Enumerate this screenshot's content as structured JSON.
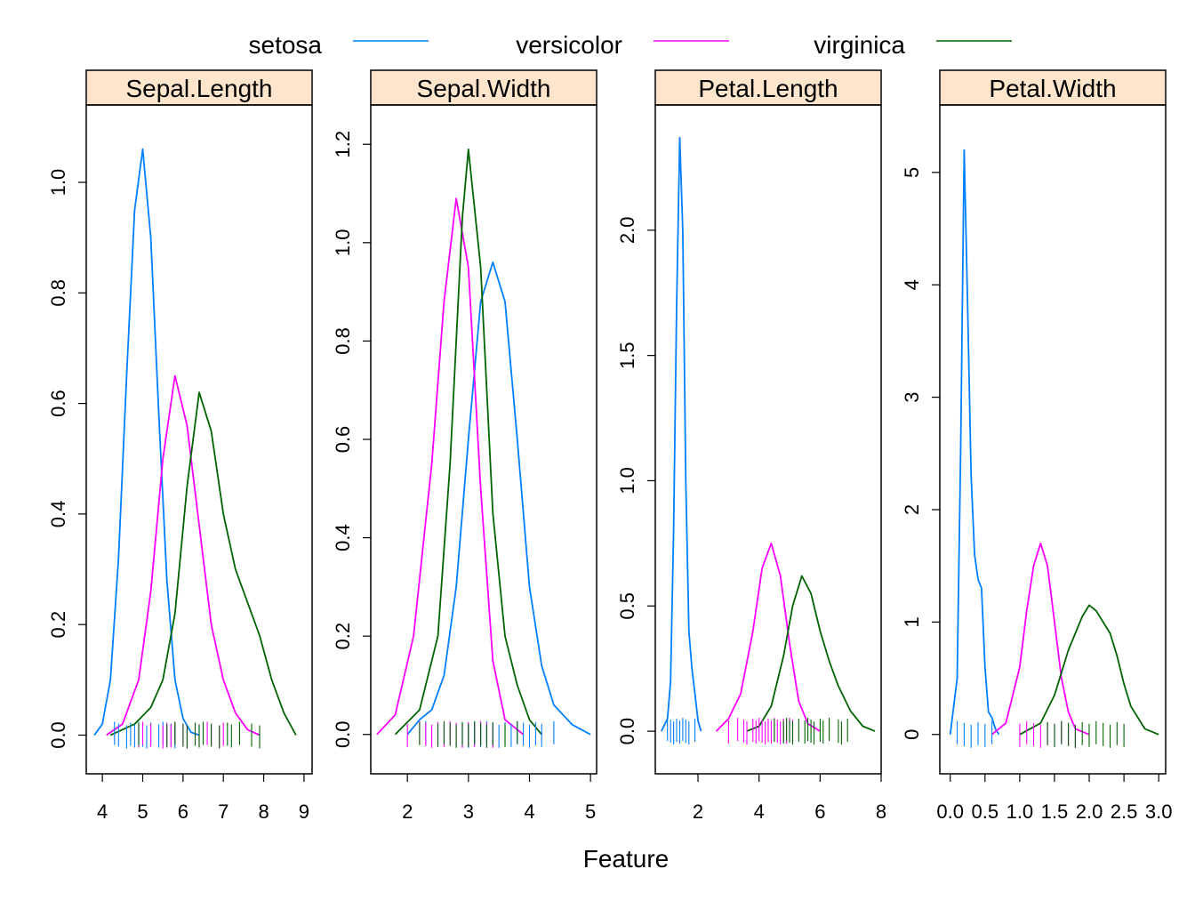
{
  "chart_data": {
    "type": "line",
    "xlabel": "Feature",
    "legend_position": "top",
    "colors": {
      "strip_fill": "#ffe5cc",
      "frame": "#000000"
    },
    "series_meta": [
      {
        "name": "setosa",
        "color": "#0080ff"
      },
      {
        "name": "versicolor",
        "color": "#ff00ff"
      },
      {
        "name": "virginica",
        "color": "#006400"
      }
    ],
    "panels": [
      {
        "strip": "Sepal.Length",
        "xlim": [
          3.6,
          9.2
        ],
        "ylim": [
          -0.07,
          1.14
        ],
        "xticks": [
          4,
          5,
          6,
          7,
          8,
          9
        ],
        "xtick_labels": [
          "4",
          "5",
          "6",
          "7",
          "8",
          "9"
        ],
        "yticks": [
          0.0,
          0.2,
          0.4,
          0.6,
          0.8,
          1.0
        ],
        "ytick_labels": [
          "0.0",
          "0.2",
          "0.4",
          "0.6",
          "0.8",
          "1.0"
        ],
        "series": [
          {
            "name": "setosa",
            "x": [
              3.8,
              4.0,
              4.2,
              4.4,
              4.6,
              4.8,
              5.0,
              5.2,
              5.4,
              5.6,
              5.8,
              6.0,
              6.2,
              6.4
            ],
            "y": [
              0.0,
              0.02,
              0.1,
              0.32,
              0.65,
              0.95,
              1.06,
              0.9,
              0.58,
              0.28,
              0.1,
              0.03,
              0.005,
              0.0
            ]
          },
          {
            "name": "versicolor",
            "x": [
              4.1,
              4.5,
              4.9,
              5.2,
              5.5,
              5.8,
              6.1,
              6.4,
              6.7,
              7.0,
              7.3,
              7.6,
              7.9
            ],
            "y": [
              0.0,
              0.02,
              0.1,
              0.26,
              0.5,
              0.65,
              0.56,
              0.38,
              0.2,
              0.1,
              0.04,
              0.01,
              0.0
            ]
          },
          {
            "name": "virginica",
            "x": [
              4.2,
              4.8,
              5.2,
              5.5,
              5.8,
              6.1,
              6.4,
              6.7,
              7.0,
              7.3,
              7.6,
              7.9,
              8.2,
              8.5,
              8.8
            ],
            "y": [
              0.0,
              0.02,
              0.05,
              0.1,
              0.22,
              0.45,
              0.62,
              0.55,
              0.4,
              0.3,
              0.24,
              0.18,
              0.1,
              0.04,
              0.0
            ]
          }
        ],
        "rugs": [
          {
            "name": "setosa",
            "x": [
              4.3,
              4.4,
              4.6,
              4.7,
              4.8,
              4.9,
              5.0,
              5.1,
              5.2,
              5.4,
              5.5,
              5.7,
              5.8
            ]
          },
          {
            "name": "versicolor",
            "x": [
              4.9,
              5.0,
              5.2,
              5.5,
              5.6,
              5.7,
              5.8,
              6.0,
              6.1,
              6.3,
              6.4,
              6.6,
              6.7,
              6.9,
              7.0
            ]
          },
          {
            "name": "virginica",
            "x": [
              4.9,
              5.6,
              5.8,
              6.0,
              6.1,
              6.3,
              6.4,
              6.5,
              6.7,
              6.9,
              7.1,
              7.2,
              7.4,
              7.7,
              7.9
            ]
          }
        ]
      },
      {
        "strip": "Sepal.Width",
        "xlim": [
          1.4,
          5.1
        ],
        "ylim": [
          -0.08,
          1.28
        ],
        "xticks": [
          2,
          3,
          4,
          5
        ],
        "xtick_labels": [
          "2",
          "3",
          "4",
          "5"
        ],
        "yticks": [
          0.0,
          0.2,
          0.4,
          0.6,
          0.8,
          1.0,
          1.2
        ],
        "ytick_labels": [
          "0.0",
          "0.2",
          "0.4",
          "0.6",
          "0.8",
          "1.0",
          "1.2"
        ],
        "series": [
          {
            "name": "setosa",
            "x": [
              2.0,
              2.2,
              2.4,
              2.6,
              2.8,
              3.0,
              3.2,
              3.4,
              3.6,
              3.8,
              4.0,
              4.2,
              4.4,
              4.7,
              5.0
            ],
            "y": [
              0.0,
              0.03,
              0.05,
              0.12,
              0.3,
              0.6,
              0.88,
              0.96,
              0.88,
              0.6,
              0.3,
              0.14,
              0.06,
              0.02,
              0.0
            ]
          },
          {
            "name": "versicolor",
            "x": [
              1.5,
              1.8,
              2.1,
              2.4,
              2.6,
              2.8,
              3.0,
              3.2,
              3.4,
              3.6,
              3.9
            ],
            "y": [
              0.0,
              0.04,
              0.2,
              0.55,
              0.88,
              1.09,
              0.95,
              0.5,
              0.15,
              0.03,
              0.0
            ]
          },
          {
            "name": "virginica",
            "x": [
              1.8,
              2.2,
              2.5,
              2.7,
              2.9,
              3.0,
              3.2,
              3.4,
              3.6,
              3.8,
              4.0,
              4.2
            ],
            "y": [
              0.0,
              0.05,
              0.2,
              0.55,
              1.05,
              1.19,
              0.95,
              0.45,
              0.2,
              0.1,
              0.03,
              0.0
            ]
          }
        ],
        "rugs": [
          {
            "name": "setosa",
            "x": [
              2.3,
              2.9,
              3.0,
              3.1,
              3.2,
              3.3,
              3.4,
              3.5,
              3.6,
              3.7,
              3.8,
              3.9,
              4.0,
              4.1,
              4.2,
              4.4
            ]
          },
          {
            "name": "versicolor",
            "x": [
              2.0,
              2.2,
              2.3,
              2.4,
              2.5,
              2.6,
              2.7,
              2.8,
              2.9,
              3.0,
              3.1,
              3.2,
              3.3,
              3.4
            ]
          },
          {
            "name": "virginica",
            "x": [
              2.2,
              2.5,
              2.6,
              2.7,
              2.8,
              2.9,
              3.0,
              3.1,
              3.2,
              3.3,
              3.4,
              3.6,
              3.8
            ]
          }
        ]
      },
      {
        "strip": "Petal.Length",
        "xlim": [
          0.6,
          8.0
        ],
        "ylim": [
          -0.17,
          2.5
        ],
        "xticks": [
          2,
          4,
          6,
          8
        ],
        "xtick_labels": [
          "2",
          "4",
          "6",
          "8"
        ],
        "yticks": [
          0.0,
          0.5,
          1.0,
          1.5,
          2.0
        ],
        "ytick_labels": [
          "0.0",
          "0.5",
          "1.0",
          "1.5",
          "2.0"
        ],
        "series": [
          {
            "name": "setosa",
            "x": [
              0.8,
              1.0,
              1.1,
              1.2,
              1.3,
              1.4,
              1.5,
              1.6,
              1.7,
              1.8,
              1.9,
              2.0,
              2.1
            ],
            "y": [
              0.0,
              0.05,
              0.2,
              0.8,
              1.7,
              2.37,
              2.0,
              1.0,
              0.4,
              0.25,
              0.15,
              0.04,
              0.0
            ]
          },
          {
            "name": "versicolor",
            "x": [
              2.6,
              3.0,
              3.4,
              3.8,
              4.1,
              4.4,
              4.7,
              5.0,
              5.3,
              5.6,
              6.0
            ],
            "y": [
              0.0,
              0.05,
              0.15,
              0.4,
              0.65,
              0.75,
              0.62,
              0.35,
              0.12,
              0.03,
              0.0
            ]
          },
          {
            "name": "virginica",
            "x": [
              3.6,
              4.0,
              4.4,
              4.8,
              5.1,
              5.4,
              5.7,
              6.0,
              6.3,
              6.6,
              7.0,
              7.4,
              7.8
            ],
            "y": [
              0.0,
              0.02,
              0.1,
              0.3,
              0.5,
              0.62,
              0.55,
              0.4,
              0.28,
              0.18,
              0.08,
              0.02,
              0.0
            ]
          }
        ],
        "rugs": [
          {
            "name": "setosa",
            "x": [
              1.0,
              1.1,
              1.2,
              1.3,
              1.4,
              1.5,
              1.6,
              1.7,
              1.9
            ]
          },
          {
            "name": "versicolor",
            "x": [
              3.0,
              3.3,
              3.5,
              3.6,
              3.8,
              3.9,
              4.0,
              4.1,
              4.2,
              4.3,
              4.4,
              4.5,
              4.6,
              4.7,
              4.8,
              4.9,
              5.0,
              5.1
            ]
          },
          {
            "name": "virginica",
            "x": [
              4.5,
              4.8,
              4.9,
              5.0,
              5.1,
              5.3,
              5.5,
              5.6,
              5.7,
              5.8,
              6.0,
              6.1,
              6.3,
              6.6,
              6.7,
              6.9
            ]
          }
        ]
      },
      {
        "strip": "Petal.Width",
        "xlim": [
          -0.15,
          3.1
        ],
        "ylim": [
          -0.35,
          5.6
        ],
        "xticks": [
          0.0,
          0.5,
          1.0,
          1.5,
          2.0,
          2.5,
          3.0
        ],
        "xtick_labels": [
          "0.0",
          "0.5",
          "1.0",
          "1.5",
          "2.0",
          "2.5",
          "3.0"
        ],
        "yticks": [
          0,
          1,
          2,
          3,
          4,
          5
        ],
        "ytick_labels": [
          "0",
          "1",
          "2",
          "3",
          "4",
          "5"
        ],
        "series": [
          {
            "name": "setosa",
            "x": [
              0.0,
              0.1,
              0.15,
              0.2,
              0.25,
              0.3,
              0.35,
              0.4,
              0.45,
              0.5,
              0.55,
              0.6,
              0.65,
              0.7
            ],
            "y": [
              0.0,
              0.5,
              2.5,
              5.2,
              3.8,
              2.3,
              1.6,
              1.38,
              1.3,
              0.6,
              0.2,
              0.15,
              0.05,
              0.0
            ]
          },
          {
            "name": "versicolor",
            "x": [
              0.6,
              0.8,
              1.0,
              1.1,
              1.2,
              1.3,
              1.4,
              1.5,
              1.6,
              1.7,
              1.8,
              2.0
            ],
            "y": [
              0.0,
              0.1,
              0.6,
              1.1,
              1.5,
              1.7,
              1.5,
              1.0,
              0.5,
              0.2,
              0.05,
              0.0
            ]
          },
          {
            "name": "virginica",
            "x": [
              1.0,
              1.3,
              1.5,
              1.7,
              1.9,
              2.0,
              2.1,
              2.2,
              2.3,
              2.4,
              2.5,
              2.6,
              2.8,
              3.0
            ],
            "y": [
              0.0,
              0.1,
              0.35,
              0.75,
              1.05,
              1.15,
              1.1,
              1.0,
              0.9,
              0.7,
              0.45,
              0.25,
              0.05,
              0.0
            ]
          }
        ],
        "rugs": [
          {
            "name": "setosa",
            "x": [
              0.1,
              0.2,
              0.3,
              0.4,
              0.5,
              0.6
            ]
          },
          {
            "name": "versicolor",
            "x": [
              1.0,
              1.1,
              1.2,
              1.3,
              1.4,
              1.5,
              1.6,
              1.7,
              1.8
            ]
          },
          {
            "name": "virginica",
            "x": [
              1.4,
              1.5,
              1.6,
              1.7,
              1.8,
              1.9,
              2.0,
              2.1,
              2.2,
              2.3,
              2.4,
              2.5
            ]
          }
        ]
      }
    ]
  }
}
